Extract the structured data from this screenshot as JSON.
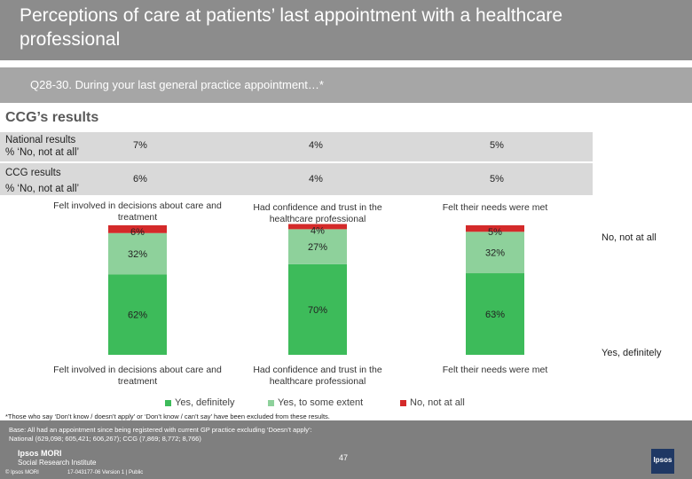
{
  "header": {
    "title": "Perceptions of care at patients’ last appointment with a healthcare professional",
    "question": "Q28-30. During your last general practice appointment…*"
  },
  "section_title": "CCG’s results",
  "summary_rows": [
    {
      "label_line1": "National results",
      "label_line2": "% ‘No, not at all’",
      "values": [
        "7%",
        "4%",
        "5%"
      ]
    },
    {
      "label_line1": "CCG results",
      "label_line2": "% ‘No, not at all’",
      "values": [
        "6%",
        "4%",
        "5%"
      ]
    }
  ],
  "colors": {
    "yes_definitely": "#3dbb5a",
    "yes_some_extent": "#8ed19b",
    "no_not_at_all": "#d42a2a"
  },
  "legend_side": {
    "no": "No, not at all",
    "yes": "Yes, definitely"
  },
  "legend": [
    "Yes, definitely",
    "Yes, to some extent",
    "No, not at all"
  ],
  "chart_data": {
    "type": "bar",
    "stacked": true,
    "title": "CCG’s results",
    "categories": [
      "Felt involved in decisions about care and treatment",
      "Had confidence and trust in the healthcare professional",
      "Felt their needs were met"
    ],
    "series": [
      {
        "name": "Yes, definitely",
        "values": [
          62,
          70,
          63
        ],
        "labels": [
          "62%",
          "70%",
          "63%"
        ]
      },
      {
        "name": "Yes, to some extent",
        "values": [
          32,
          27,
          32
        ],
        "labels": [
          "32%",
          "27%",
          "32%"
        ]
      },
      {
        "name": "No, not at all",
        "values": [
          6,
          4,
          5
        ],
        "labels": [
          "6%",
          "4%",
          "5%"
        ]
      }
    ],
    "ylim": [
      0,
      100
    ]
  },
  "footnote": "*Those who say ‘Don’t know / doesn’t apply’ or ‘Don’t know / can’t say’ have been excluded from these results.",
  "footer": {
    "base_line1": "Base: All had an appointment since being registered with current GP practice excluding ‘Doesn’t apply’:",
    "base_line2": "National (629,098; 605,421; 606,267); CCG (7,869; 8,772; 8,766)",
    "brand": "Ipsos MORI",
    "brand_sub": "Social Research Institute",
    "copyright": "© Ipsos MORI",
    "version": "17-043177-06 Version 1 | Public",
    "page": "47"
  }
}
